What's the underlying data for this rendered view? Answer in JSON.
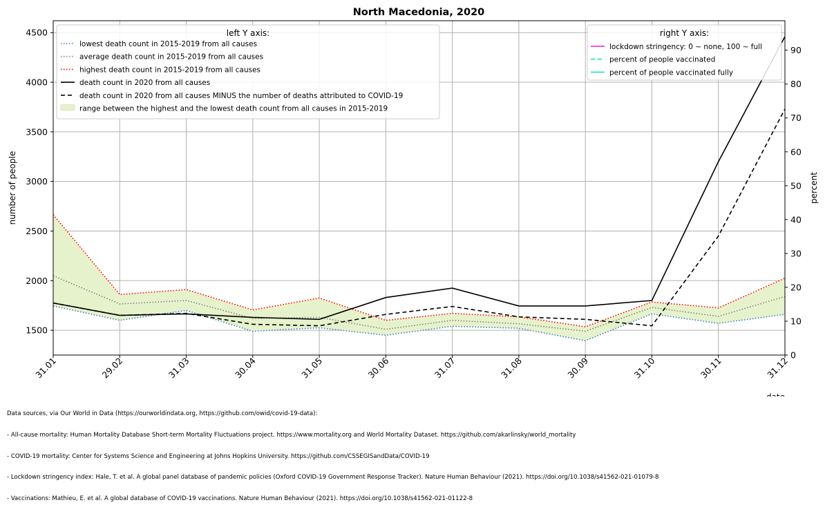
{
  "chart_data": {
    "type": "line",
    "title": "North Macedonia, 2020",
    "xlabel": "date",
    "ylabel_left": "number of people",
    "ylabel_right": "percent",
    "categories": [
      "31.01",
      "29.02",
      "31.03",
      "30.04",
      "31.05",
      "30.06",
      "31.07",
      "31.08",
      "30.09",
      "31.10",
      "30.11",
      "31.12"
    ],
    "ylim_left": [
      1250,
      4620
    ],
    "yticks_left": [
      1500,
      2000,
      2500,
      3000,
      3500,
      4000,
      4500
    ],
    "ylim_right": [
      0,
      98.7
    ],
    "yticks_right": [
      0,
      10,
      20,
      30,
      40,
      50,
      60,
      70,
      80,
      90
    ],
    "grid": true,
    "legend_left": {
      "title": "left Y axis:",
      "placement": "upper-left",
      "entries": [
        "lowest death count in 2015-2019 from all causes",
        "average death count in 2015-2019 from all causes",
        "highest death count in 2015-2019 from all causes",
        "death count in 2020 from all causes",
        "death count in 2020 from all causes MINUS the number of deaths attributed to COVID-19",
        "range between the highest and the lowest death count from all causes in 2015-2019"
      ]
    },
    "legend_right": {
      "title": "right Y axis:",
      "placement": "upper-right",
      "entries": [
        {
          "label": "lockdown stringency: 0 ~ none, 100 ~ full",
          "color": "#e619e6",
          "style": "solid"
        },
        {
          "label": "percent of people vaccinated",
          "color": "#19e6b0",
          "style": "dashed"
        },
        {
          "label": "percent of people vaccinated fully",
          "color": "#19e6b0",
          "style": "solid"
        }
      ]
    },
    "series": [
      {
        "values": [
          1745,
          1600,
          1700,
          1490,
          1525,
          1450,
          1540,
          1520,
          1395,
          1665,
          1570,
          1660
        ],
        "color": "#3a78c8",
        "style": "dotted"
      },
      {
        "values": [
          2050,
          1765,
          1800,
          1620,
          1630,
          1510,
          1600,
          1565,
          1490,
          1730,
          1640,
          1840
        ],
        "color": "#808080",
        "style": "dotted"
      },
      {
        "values": [
          2665,
          1860,
          1910,
          1705,
          1825,
          1600,
          1670,
          1635,
          1535,
          1785,
          1725,
          2025
        ],
        "color": "#ff0000",
        "style": "dotted"
      },
      {
        "values": [
          1775,
          1650,
          1665,
          1630,
          1610,
          1830,
          1925,
          1745,
          1745,
          1800,
          3200,
          4460
        ],
        "color": "#000000",
        "style": "solid"
      },
      {
        "values": [
          1775,
          1650,
          1670,
          1560,
          1545,
          1660,
          1740,
          1635,
          1610,
          1545,
          2450,
          3730
        ],
        "color": "#000000",
        "style": "dashed"
      }
    ],
    "band_color": "#e6f2cc"
  },
  "footer": {
    "lines": [
      "Data sources, via Our World in Data (https://ourworldindata.org, https://github.com/owid/covid-19-data):",
      "- All-cause mortality: Human Mortality Database Short-term Mortality Fluctuations project. https://www.mortality.org and World Mortality Dataset. https://github.com/akarlinsky/world_mortality",
      "- COVID-19 mortality: Center for Systems Science and Engineering at Johns Hopkins University. https://github.com/CSSEGISandData/COVID-19",
      "- Lockdown stringency index: Hale, T. et al. A global panel database of pandemic policies (Oxford COVID-19 Government Response Tracker). Nature Human Behaviour (2021). https://doi.org/10.1038/s41562-021-01079-8",
      "- Vaccinations: Mathieu, E. et al. A global database of COVID-19 vaccinations. Nature Human Behaviour (2021). https://doi.org/10.1038/s41562-021-01122-8"
    ]
  }
}
